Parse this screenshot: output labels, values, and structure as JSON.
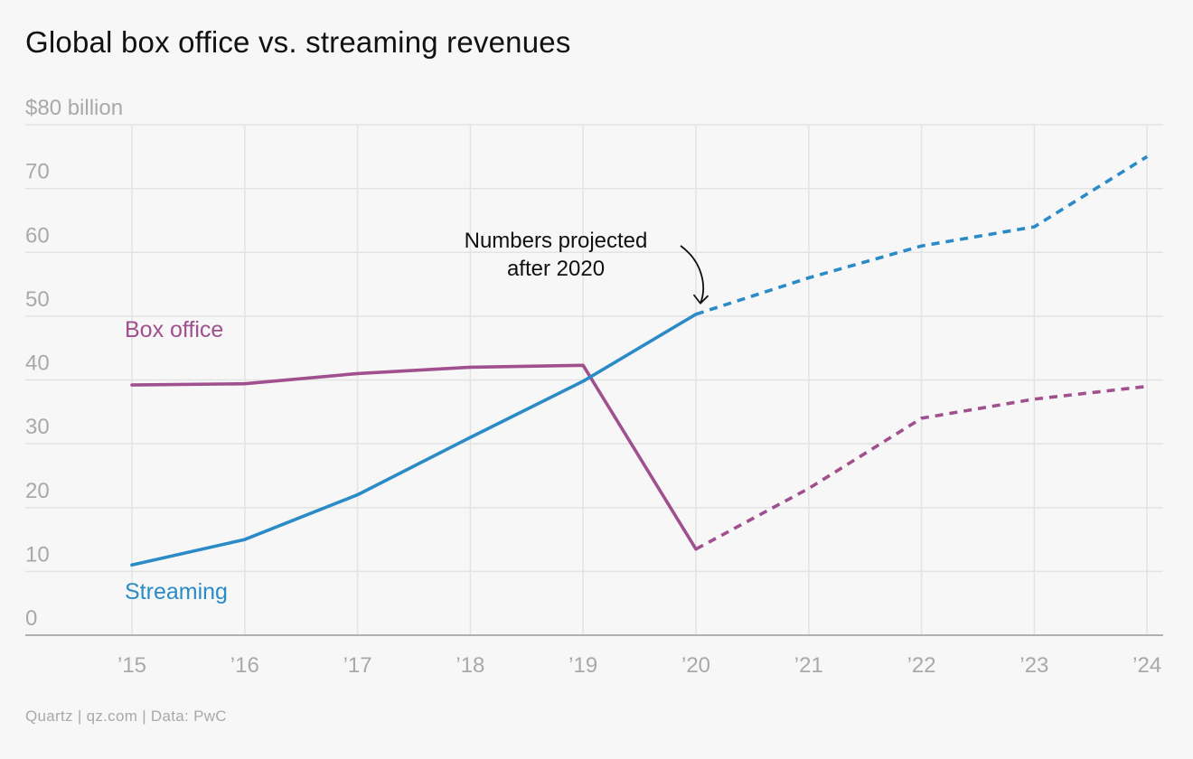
{
  "title": "Global box office vs. streaming revenues",
  "source": "Quartz | qz.com | Data: PwC",
  "annotation": {
    "line1": "Numbers projected",
    "line2": "after 2020"
  },
  "colors": {
    "box_office": "#a0508e",
    "streaming": "#2a8bc7",
    "grid": "#e3e3e3",
    "axis": "#999999",
    "tick_text": "#a9a9a9"
  },
  "chart_data": {
    "type": "line",
    "title": "Global box office vs. streaming revenues",
    "xlabel": "",
    "ylabel": "",
    "y_unit_label": "$80 billion",
    "ylim": [
      0,
      80
    ],
    "y_ticks": [
      0,
      10,
      20,
      30,
      40,
      50,
      60,
      70
    ],
    "categories": [
      "’15",
      "’16",
      "’17",
      "’18",
      "’19",
      "’20",
      "’21",
      "’22",
      "’23",
      "’24"
    ],
    "projected_after": "’20",
    "series": [
      {
        "name": "Box office",
        "values": [
          39.2,
          39.4,
          41,
          42,
          42.3,
          13.5,
          23,
          34,
          37,
          39
        ]
      },
      {
        "name": "Streaming",
        "values": [
          11,
          15,
          22,
          31,
          39.8,
          50.3,
          56,
          61,
          64,
          75
        ]
      }
    ],
    "grid": true,
    "legend": "inline labels"
  }
}
